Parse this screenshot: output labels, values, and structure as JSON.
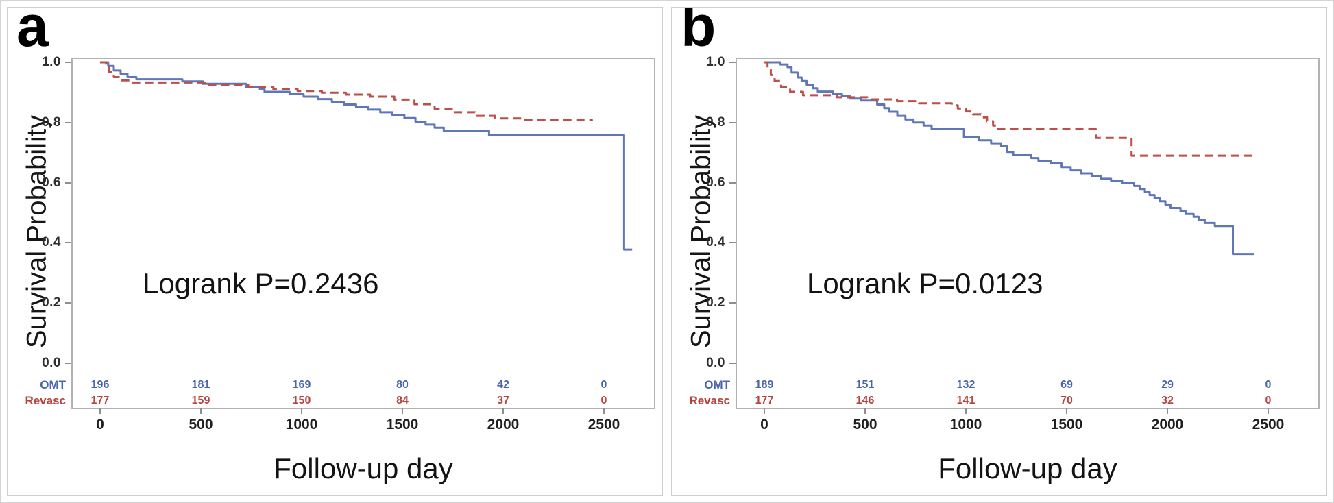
{
  "figure": {
    "colors": {
      "omt_line": "#5f77b8",
      "revasc_line": "#bb4f4a",
      "omt_text": "#4a64ad",
      "revasc_text": "#b5443f",
      "frame_border": "#b3b3b3",
      "panel_border": "#cfcfcf",
      "tick_mark": "#8f8f8f"
    }
  },
  "chart_data": [
    {
      "panel_label": "a",
      "type": "line",
      "chart_kind": "kaplan-meier-step",
      "annotation": "Logrank P=0.2436",
      "xlabel": "Follow-up day",
      "ylabel": "Survival Probability",
      "xlim": [
        0,
        2500
      ],
      "ylim": [
        0.0,
        1.0
      ],
      "grid": false,
      "x_tick_days": [
        0,
        500,
        1000,
        1500,
        2000,
        2500
      ],
      "x_tick_labels": [
        "0",
        "500",
        "1000",
        "1500",
        "2000",
        "2500"
      ],
      "y_tick_values": [
        1.0,
        0.8,
        0.6,
        0.4,
        0.2,
        0.0
      ],
      "y_tick_labels": [
        "1.0",
        "0.8",
        "0.6",
        "0.4",
        "0.2",
        "0.0"
      ],
      "series": [
        {
          "name": "OMT",
          "color": "#5f77b8",
          "line_style": "solid",
          "steps": [
            [
              0,
              1.0
            ],
            [
              40,
              0.988
            ],
            [
              68,
              0.973
            ],
            [
              102,
              0.962
            ],
            [
              136,
              0.951
            ],
            [
              180,
              0.944
            ],
            [
              408,
              0.937
            ],
            [
              510,
              0.929
            ],
            [
              724,
              0.918
            ],
            [
              793,
              0.911
            ],
            [
              816,
              0.902
            ],
            [
              940,
              0.894
            ],
            [
              1010,
              0.886
            ],
            [
              1080,
              0.878
            ],
            [
              1150,
              0.869
            ],
            [
              1210,
              0.86
            ],
            [
              1270,
              0.851
            ],
            [
              1330,
              0.843
            ],
            [
              1390,
              0.834
            ],
            [
              1450,
              0.825
            ],
            [
              1510,
              0.815
            ],
            [
              1565,
              0.803
            ],
            [
              1615,
              0.793
            ],
            [
              1660,
              0.783
            ],
            [
              1705,
              0.773
            ],
            [
              1930,
              0.758
            ],
            [
              2600,
              0.378
            ],
            [
              2640,
              0.378
            ]
          ]
        },
        {
          "name": "Revasc",
          "color": "#bb4f4a",
          "line_style": "dashed",
          "steps": [
            [
              0,
              1.0
            ],
            [
              30,
              0.982
            ],
            [
              44,
              0.969
            ],
            [
              68,
              0.951
            ],
            [
              102,
              0.94
            ],
            [
              146,
              0.933
            ],
            [
              520,
              0.926
            ],
            [
              735,
              0.918
            ],
            [
              860,
              0.911
            ],
            [
              980,
              0.905
            ],
            [
              1100,
              0.899
            ],
            [
              1220,
              0.893
            ],
            [
              1340,
              0.886
            ],
            [
              1460,
              0.876
            ],
            [
              1560,
              0.861
            ],
            [
              1660,
              0.846
            ],
            [
              1760,
              0.834
            ],
            [
              1860,
              0.822
            ],
            [
              1960,
              0.814
            ],
            [
              2090,
              0.808
            ],
            [
              2440,
              0.806
            ]
          ]
        }
      ],
      "risk_table": {
        "rows": [
          {
            "label": "OMT",
            "color": "#4a64ad",
            "values": [
              "196",
              "181",
              "169",
              "80",
              "42",
              "0"
            ]
          },
          {
            "label": "Revasc",
            "color": "#b5443f",
            "values": [
              "177",
              "159",
              "150",
              "84",
              "37",
              "0"
            ]
          }
        ]
      }
    },
    {
      "panel_label": "b",
      "type": "line",
      "chart_kind": "kaplan-meier-step",
      "annotation": "Logrank P=0.0123",
      "xlabel": "Follow-up day",
      "ylabel": "Survival Probability",
      "xlim": [
        0,
        2500
      ],
      "ylim": [
        0.0,
        1.0
      ],
      "grid": false,
      "x_tick_days": [
        0,
        500,
        1000,
        1500,
        2000,
        2500
      ],
      "x_tick_labels": [
        "0",
        "500",
        "1000",
        "1500",
        "2000",
        "2500"
      ],
      "y_tick_values": [
        1.0,
        0.8,
        0.6,
        0.4,
        0.2,
        0.0
      ],
      "y_tick_labels": [
        "1.0",
        "0.8",
        "0.6",
        "0.4",
        "0.2",
        "0.0"
      ],
      "series": [
        {
          "name": "OMT",
          "color": "#5f77b8",
          "line_style": "solid",
          "steps": [
            [
              0,
              1.0
            ],
            [
              80,
              0.993
            ],
            [
              115,
              0.984
            ],
            [
              135,
              0.966
            ],
            [
              165,
              0.95
            ],
            [
              185,
              0.938
            ],
            [
              210,
              0.926
            ],
            [
              240,
              0.914
            ],
            [
              265,
              0.903
            ],
            [
              340,
              0.895
            ],
            [
              385,
              0.888
            ],
            [
              425,
              0.88
            ],
            [
              480,
              0.873
            ],
            [
              560,
              0.86
            ],
            [
              595,
              0.848
            ],
            [
              620,
              0.836
            ],
            [
              660,
              0.822
            ],
            [
              700,
              0.81
            ],
            [
              740,
              0.8
            ],
            [
              790,
              0.79
            ],
            [
              830,
              0.778
            ],
            [
              990,
              0.752
            ],
            [
              1065,
              0.741
            ],
            [
              1125,
              0.731
            ],
            [
              1175,
              0.721
            ],
            [
              1205,
              0.702
            ],
            [
              1235,
              0.692
            ],
            [
              1325,
              0.682
            ],
            [
              1360,
              0.673
            ],
            [
              1420,
              0.664
            ],
            [
              1475,
              0.652
            ],
            [
              1520,
              0.641
            ],
            [
              1570,
              0.631
            ],
            [
              1625,
              0.621
            ],
            [
              1670,
              0.613
            ],
            [
              1720,
              0.607
            ],
            [
              1775,
              0.6
            ],
            [
              1835,
              0.589
            ],
            [
              1862,
              0.579
            ],
            [
              1888,
              0.569
            ],
            [
              1912,
              0.559
            ],
            [
              1936,
              0.549
            ],
            [
              1962,
              0.538
            ],
            [
              1990,
              0.527
            ],
            [
              2015,
              0.516
            ],
            [
              2065,
              0.505
            ],
            [
              2090,
              0.496
            ],
            [
              2130,
              0.487
            ],
            [
              2155,
              0.477
            ],
            [
              2185,
              0.466
            ],
            [
              2235,
              0.456
            ],
            [
              2325,
              0.363
            ],
            [
              2430,
              0.363
            ]
          ]
        },
        {
          "name": "Revasc",
          "color": "#bb4f4a",
          "line_style": "dashed",
          "steps": [
            [
              0,
              1.0
            ],
            [
              16,
              0.976
            ],
            [
              32,
              0.958
            ],
            [
              51,
              0.938
            ],
            [
              83,
              0.918
            ],
            [
              128,
              0.902
            ],
            [
              192,
              0.891
            ],
            [
              361,
              0.884
            ],
            [
              511,
              0.877
            ],
            [
              658,
              0.871
            ],
            [
              767,
              0.864
            ],
            [
              930,
              0.857
            ],
            [
              960,
              0.847
            ],
            [
              1000,
              0.837
            ],
            [
              1035,
              0.827
            ],
            [
              1075,
              0.817
            ],
            [
              1105,
              0.804
            ],
            [
              1135,
              0.79
            ],
            [
              1160,
              0.778
            ],
            [
              1645,
              0.749
            ],
            [
              1822,
              0.69
            ],
            [
              2430,
              0.69
            ]
          ]
        }
      ],
      "risk_table": {
        "rows": [
          {
            "label": "OMT",
            "color": "#4a64ad",
            "values": [
              "189",
              "151",
              "132",
              "69",
              "29",
              "0"
            ]
          },
          {
            "label": "Revasc",
            "color": "#b5443f",
            "values": [
              "177",
              "146",
              "141",
              "70",
              "32",
              "0"
            ]
          }
        ]
      }
    }
  ]
}
